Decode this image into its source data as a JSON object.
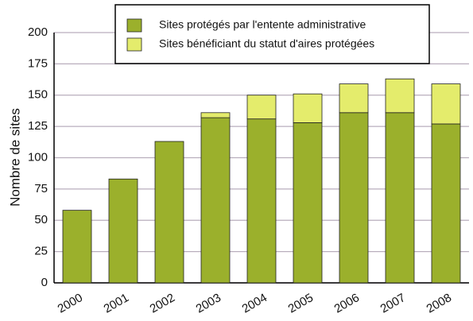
{
  "chart_data": {
    "type": "stacked_bar",
    "y_label": "Nombre de sites",
    "categories": [
      "2000",
      "2001",
      "2002",
      "2003",
      "2004",
      "2005",
      "2006",
      "2007",
      "2008"
    ],
    "series": [
      {
        "name": "Sites protégés par l'entente administrative",
        "color": "#9bb02c",
        "values": [
          58,
          83,
          113,
          132,
          131,
          128,
          136,
          136,
          127
        ]
      },
      {
        "name": "Sites bénéficiant du statut d'aires protégées",
        "color": "#e4ec6c",
        "values": [
          0,
          0,
          0,
          4,
          19,
          23,
          23,
          27,
          32
        ]
      }
    ],
    "ylim": [
      0,
      200
    ],
    "yticks": [
      0,
      25,
      50,
      75,
      100,
      125,
      150,
      175,
      200
    ],
    "grid": true
  }
}
